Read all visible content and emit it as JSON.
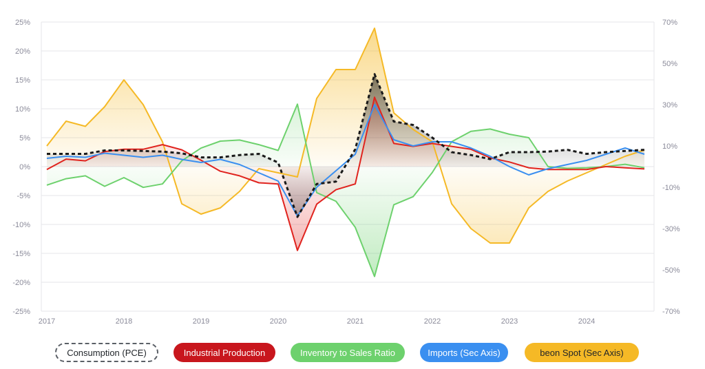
{
  "chart_data": {
    "type": "line",
    "x": [
      "2017-Q1",
      "2017-Q2",
      "2017-Q3",
      "2017-Q4",
      "2018-Q1",
      "2018-Q2",
      "2018-Q3",
      "2018-Q4",
      "2019-Q1",
      "2019-Q2",
      "2019-Q3",
      "2019-Q4",
      "2020-Q1",
      "2020-Q2",
      "2020-Q3",
      "2020-Q4",
      "2021-Q1",
      "2021-Q2",
      "2021-Q3",
      "2021-Q4",
      "2022-Q1",
      "2022-Q2",
      "2022-Q3",
      "2022-Q4",
      "2023-Q1",
      "2023-Q2",
      "2023-Q3",
      "2023-Q4",
      "2024-Q1",
      "2024-Q2",
      "2024-Q3",
      "2024-Q4"
    ],
    "x_tick_labels": [
      "2017",
      "2018",
      "2019",
      "2020",
      "2021",
      "2022",
      "2023",
      "2024"
    ],
    "y_left": {
      "ylim": [
        -25,
        25
      ],
      "ticks": [
        "25%",
        "20%",
        "15%",
        "10%",
        "5%",
        "0%",
        "-5%",
        "-10%",
        "-15%",
        "-20%",
        "-25%"
      ]
    },
    "y_right": {
      "ylim": [
        -70,
        70
      ],
      "ticks": [
        "70%",
        "50%",
        "30%",
        "10%",
        "-10%",
        "-30%",
        "-50%",
        "-70%"
      ]
    },
    "grid": "horizontal",
    "legend_position": "bottom",
    "series": [
      {
        "name": "Consumption (PCE)",
        "axis": "left",
        "color": "#1a1a1a",
        "style": "dashed",
        "values": [
          2.2,
          2.2,
          2.2,
          2.8,
          2.8,
          2.7,
          2.6,
          2.3,
          1.6,
          1.6,
          2.0,
          2.2,
          0.7,
          -8.7,
          -3.0,
          -2.6,
          3.0,
          16.0,
          7.8,
          7.2,
          5.0,
          2.5,
          2.0,
          1.3,
          2.5,
          2.5,
          2.6,
          2.9,
          2.2,
          2.5,
          2.7,
          2.9
        ]
      },
      {
        "name": "Industrial Production",
        "axis": "left",
        "color": "#e0231e",
        "style": "solid",
        "values": [
          -0.5,
          1.3,
          1.0,
          2.6,
          3.0,
          3.0,
          3.8,
          2.9,
          1.1,
          -0.8,
          -1.6,
          -2.8,
          -3.0,
          -14.5,
          -6.5,
          -4.0,
          -3.0,
          12.0,
          4.0,
          3.5,
          4.0,
          3.5,
          3.0,
          1.5,
          0.8,
          -0.2,
          -0.5,
          -0.5,
          -0.5,
          0.0,
          -0.2,
          -0.4
        ]
      },
      {
        "name": "Inventory to Sales Ratio",
        "axis": "left",
        "color": "#6dd16d",
        "style": "solid",
        "values": [
          -3.2,
          -2.1,
          -1.6,
          -3.4,
          -1.9,
          -3.6,
          -3.0,
          1.0,
          3.2,
          4.4,
          4.6,
          3.8,
          2.8,
          10.8,
          -4.5,
          -6.0,
          -10.5,
          -19.0,
          -6.6,
          -5.2,
          -1.0,
          4.3,
          6.1,
          6.5,
          5.6,
          5.0,
          0.0,
          -0.3,
          -0.2,
          0.0,
          0.4,
          -0.2
        ]
      },
      {
        "name": "Imports (Sec Axis)",
        "axis": "right",
        "color": "#3a8ff0",
        "style": "solid",
        "values": [
          4.0,
          5.0,
          4.5,
          6.5,
          5.5,
          4.5,
          5.5,
          3.5,
          2.0,
          3.5,
          1.0,
          -3.0,
          -7.0,
          -24.0,
          -10.0,
          -2.0,
          6.0,
          30.0,
          13.0,
          10.0,
          12.0,
          12.0,
          9.0,
          5.0,
          0.0,
          -4.0,
          -1.0,
          1.0,
          3.0,
          6.0,
          9.0,
          6.0
        ]
      },
      {
        "name": "beon Spot (Sec Axis)",
        "axis": "right",
        "color": "#f5b926",
        "style": "solid",
        "values": [
          10.0,
          22.0,
          19.5,
          29.0,
          42.0,
          30.0,
          12.0,
          -18.0,
          -23.0,
          -20.0,
          -12.0,
          -1.0,
          -3.0,
          -5.0,
          33.0,
          47.0,
          47.0,
          67.0,
          26.0,
          18.0,
          12.0,
          -18.0,
          -30.0,
          -37.0,
          -37.0,
          -20.0,
          -12.0,
          -7.0,
          -3.0,
          1.0,
          5.0,
          8.0
        ]
      }
    ]
  },
  "legend": {
    "consumption": "Consumption (PCE)",
    "industrial": "Industrial Production",
    "inventory": "Inventory to Sales Ratio",
    "imports": "Imports (Sec Axis)",
    "beon": "beon Spot (Sec Axis)"
  },
  "colors": {
    "consumption": "#1a1a1a",
    "industrial": "#c8161d",
    "inventory": "#6dd16d",
    "imports": "#3a8ff0",
    "beon": "#f5b926",
    "grid": "#e4e6ea",
    "tick_text": "#8a8a99"
  }
}
